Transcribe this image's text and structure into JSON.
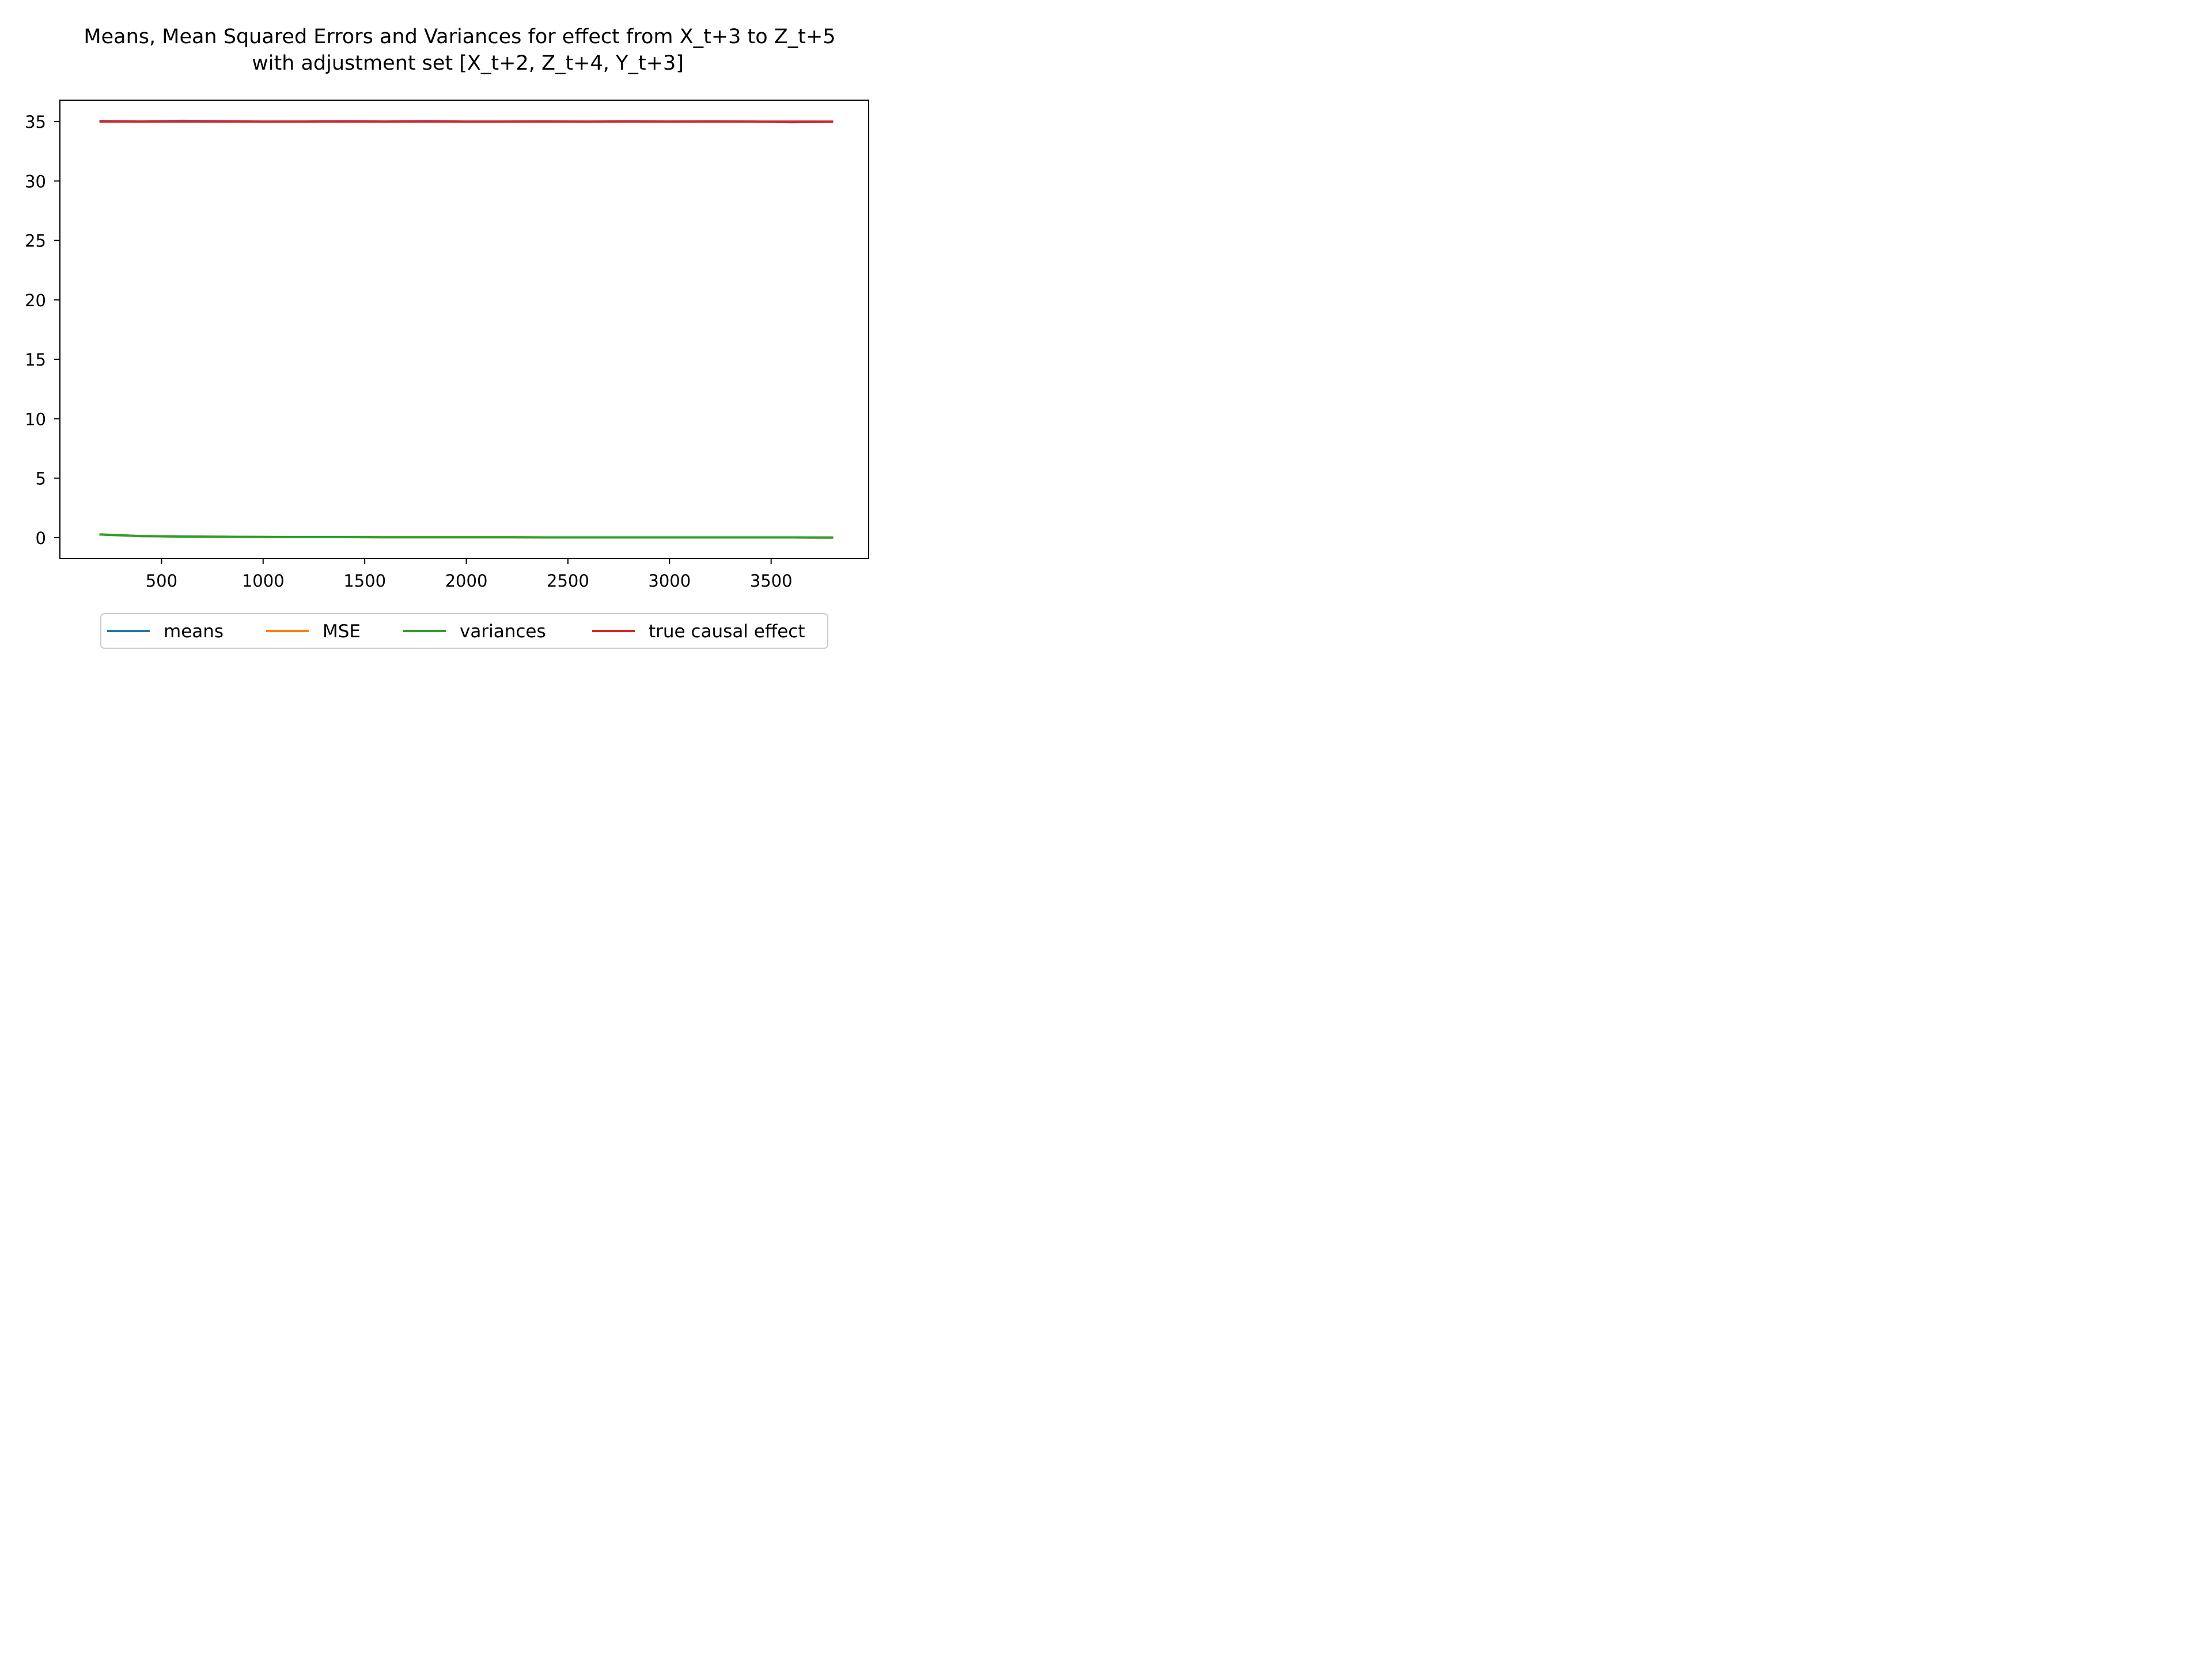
{
  "chart_data": {
    "type": "line",
    "title_line1": "Means, Mean Squared Errors and Variances for effect from X_t+3 to Z_t+5",
    "title_line2": "with adjustment set [X_t+2, Z_t+4, Y_t+3]",
    "xlabel": "",
    "ylabel": "",
    "xlim": [
      0,
      3980
    ],
    "ylim": [
      -1.75,
      36.8
    ],
    "xticks": [
      500,
      1000,
      1500,
      2000,
      2500,
      3000,
      3500
    ],
    "yticks": [
      0,
      5,
      10,
      15,
      20,
      25,
      30,
      35
    ],
    "x": [
      200,
      400,
      600,
      800,
      1000,
      1200,
      1400,
      1600,
      1800,
      2000,
      2200,
      2400,
      2600,
      2800,
      3000,
      3200,
      3400,
      3600,
      3800
    ],
    "series": [
      {
        "name": "means",
        "color": "#1f77b4",
        "values": [
          35.05,
          35.0,
          35.06,
          35.03,
          34.99,
          35.0,
          35.03,
          35.0,
          35.04,
          34.99,
          35.0,
          35.01,
          34.99,
          35.02,
          35.0,
          35.01,
          35.0,
          34.95,
          34.98
        ]
      },
      {
        "name": "MSE",
        "color": "#ff7f0e",
        "values": [
          0.27,
          0.13,
          0.09,
          0.07,
          0.05,
          0.04,
          0.04,
          0.03,
          0.03,
          0.03,
          0.03,
          0.02,
          0.02,
          0.02,
          0.02,
          0.02,
          0.02,
          0.02,
          0.01
        ]
      },
      {
        "name": "variances",
        "color": "#2ca02c",
        "values": [
          0.26,
          0.13,
          0.09,
          0.07,
          0.05,
          0.04,
          0.04,
          0.03,
          0.03,
          0.03,
          0.03,
          0.02,
          0.02,
          0.02,
          0.02,
          0.02,
          0.02,
          0.02,
          0.01
        ]
      },
      {
        "name": "true causal effect",
        "color": "#d62728",
        "values": [
          35.0,
          35.0,
          35.0,
          35.0,
          35.0,
          35.0,
          35.0,
          35.0,
          35.0,
          35.0,
          35.0,
          35.0,
          35.0,
          35.0,
          35.0,
          35.0,
          35.0,
          35.0,
          35.0
        ]
      }
    ],
    "legend_placement": "bottom-center",
    "grid": false
  }
}
